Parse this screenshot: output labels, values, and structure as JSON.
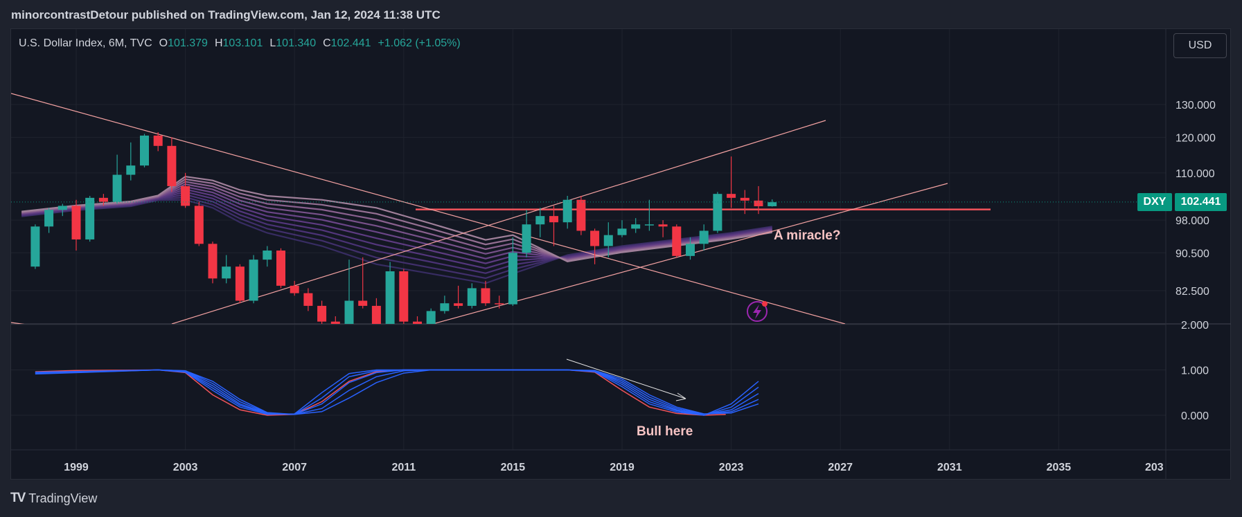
{
  "header": {
    "published": "minorcontrastDetour published on TradingView.com, Jan 12, 2024 11:38 UTC"
  },
  "legend": {
    "symbol": "U.S. Dollar Index, 6M, TVC",
    "o_label": "O",
    "o_value": "101.379",
    "h_label": "H",
    "h_value": "103.101",
    "l_label": "L",
    "l_value": "101.340",
    "c_label": "C",
    "c_value": "102.441",
    "change": "+1.062 (+1.05%)"
  },
  "currency_button": "USD",
  "price_tag": {
    "symbol": "DXY",
    "value": "102.441"
  },
  "brand": {
    "name": "TradingView"
  },
  "colors": {
    "up": "#26a69a",
    "down": "#f23645",
    "line": "#f5a3a3",
    "level": "#f2545b",
    "osc_red": "#f2545b",
    "osc_blue": "#2962ff"
  },
  "chart_data": [
    {
      "type": "candlestick",
      "title": "U.S. Dollar Index, 6M, TVC",
      "x_ticks": [
        "1999",
        "2003",
        "2007",
        "2011",
        "2015",
        "2019",
        "2023",
        "2027",
        "2031",
        "2035",
        "203"
      ],
      "y_ticks": [
        "130.000",
        "120.000",
        "110.000",
        "98.000",
        "90.500",
        "82.500"
      ],
      "y_scale": "log",
      "ylim": [
        76,
        140
      ],
      "grid": true,
      "last_price": 102.441,
      "candles": [
        {
          "t": 1997.5,
          "o": 87.5,
          "h": 97,
          "l": 87,
          "c": 96.5
        },
        {
          "t": 1998.0,
          "o": 96.5,
          "h": 101,
          "l": 95,
          "c": 100.5
        },
        {
          "t": 1998.5,
          "o": 100.5,
          "h": 102,
          "l": 99,
          "c": 101.5
        },
        {
          "t": 1999.0,
          "o": 101.5,
          "h": 103,
          "l": 91,
          "c": 93.5
        },
        {
          "t": 1999.5,
          "o": 93.5,
          "h": 104,
          "l": 93,
          "c": 103.5
        },
        {
          "t": 2000.0,
          "o": 103.5,
          "h": 104.5,
          "l": 101.5,
          "c": 102.5
        },
        {
          "t": 2000.5,
          "o": 102.5,
          "h": 115,
          "l": 102,
          "c": 109.5
        },
        {
          "t": 2001.0,
          "o": 109.5,
          "h": 118.5,
          "l": 108,
          "c": 112
        },
        {
          "t": 2001.5,
          "o": 112,
          "h": 121,
          "l": 111.5,
          "c": 120.5
        },
        {
          "t": 2002.0,
          "o": 120.5,
          "h": 121.5,
          "l": 116,
          "c": 117.5
        },
        {
          "t": 2002.5,
          "o": 117.5,
          "h": 120,
          "l": 105,
          "c": 106.5
        },
        {
          "t": 2003.0,
          "o": 106.5,
          "h": 110,
          "l": 101,
          "c": 101.5
        },
        {
          "t": 2003.5,
          "o": 101.5,
          "h": 102.5,
          "l": 92,
          "c": 92.5
        },
        {
          "t": 2004.0,
          "o": 92.5,
          "h": 93,
          "l": 84,
          "c": 85
        },
        {
          "t": 2004.5,
          "o": 85,
          "h": 90,
          "l": 84,
          "c": 87.5
        },
        {
          "t": 2005.0,
          "o": 87.5,
          "h": 88,
          "l": 80,
          "c": 80.5
        },
        {
          "t": 2005.5,
          "o": 80.5,
          "h": 90,
          "l": 80,
          "c": 89
        },
        {
          "t": 2006.0,
          "o": 89,
          "h": 92,
          "l": 87.5,
          "c": 91
        },
        {
          "t": 2006.5,
          "o": 91,
          "h": 91.5,
          "l": 83,
          "c": 83.5
        },
        {
          "t": 2007.0,
          "o": 83.5,
          "h": 84.5,
          "l": 81.5,
          "c": 82
        },
        {
          "t": 2007.5,
          "o": 82,
          "h": 83,
          "l": 78.5,
          "c": 79.5
        },
        {
          "t": 2008.0,
          "o": 79.5,
          "h": 80.5,
          "l": 76,
          "c": 76.5
        },
        {
          "t": 2008.5,
          "o": 76.5,
          "h": 77.5,
          "l": 72,
          "c": 73
        },
        {
          "t": 2009.0,
          "o": 73,
          "h": 89,
          "l": 71,
          "c": 80.5
        },
        {
          "t": 2009.5,
          "o": 80.5,
          "h": 89.5,
          "l": 79,
          "c": 79.5
        },
        {
          "t": 2010.0,
          "o": 79.5,
          "h": 81,
          "l": 75,
          "c": 76
        },
        {
          "t": 2010.5,
          "o": 76,
          "h": 88.5,
          "l": 75.5,
          "c": 86.5
        },
        {
          "t": 2011.0,
          "o": 86.5,
          "h": 87,
          "l": 75.5,
          "c": 76.5
        },
        {
          "t": 2011.5,
          "o": 76.5,
          "h": 77.5,
          "l": 72.5,
          "c": 73.5
        },
        {
          "t": 2012.0,
          "o": 73.5,
          "h": 79,
          "l": 73,
          "c": 78.5
        },
        {
          "t": 2012.5,
          "o": 78.5,
          "h": 81.5,
          "l": 78,
          "c": 80
        },
        {
          "t": 2013.0,
          "o": 80,
          "h": 83.5,
          "l": 79,
          "c": 79.5
        },
        {
          "t": 2013.5,
          "o": 79.5,
          "h": 84,
          "l": 79,
          "c": 83
        },
        {
          "t": 2014.0,
          "o": 83,
          "h": 84.5,
          "l": 79.5,
          "c": 80
        },
        {
          "t": 2014.5,
          "o": 80,
          "h": 81.5,
          "l": 79,
          "c": 79.8
        },
        {
          "t": 2015.0,
          "o": 79.8,
          "h": 94,
          "l": 79.5,
          "c": 90.5
        },
        {
          "t": 2015.5,
          "o": 90.5,
          "h": 100.5,
          "l": 89.5,
          "c": 97
        },
        {
          "t": 2016.0,
          "o": 97,
          "h": 101,
          "l": 94,
          "c": 99
        },
        {
          "t": 2016.5,
          "o": 99,
          "h": 101.5,
          "l": 92,
          "c": 97.5
        },
        {
          "t": 2017.0,
          "o": 97.5,
          "h": 104,
          "l": 96,
          "c": 103
        },
        {
          "t": 2017.5,
          "o": 103,
          "h": 104,
          "l": 94.5,
          "c": 95.5
        },
        {
          "t": 2018.0,
          "o": 95.5,
          "h": 96,
          "l": 88,
          "c": 92
        },
        {
          "t": 2018.5,
          "o": 92,
          "h": 97.5,
          "l": 89.5,
          "c": 94.5
        },
        {
          "t": 2019.0,
          "o": 94.5,
          "h": 98,
          "l": 94,
          "c": 96
        },
        {
          "t": 2019.5,
          "o": 96,
          "h": 98.5,
          "l": 95,
          "c": 97
        },
        {
          "t": 2020.0,
          "o": 97,
          "h": 103,
          "l": 95.5,
          "c": 97
        },
        {
          "t": 2020.5,
          "o": 97,
          "h": 98,
          "l": 94,
          "c": 96.5
        },
        {
          "t": 2021.0,
          "o": 96.5,
          "h": 97,
          "l": 89.5,
          "c": 89.8
        },
        {
          "t": 2021.5,
          "o": 89.8,
          "h": 94,
          "l": 89,
          "c": 92.5
        },
        {
          "t": 2022.0,
          "o": 92.5,
          "h": 97,
          "l": 91,
          "c": 95.5
        },
        {
          "t": 2022.5,
          "o": 95.5,
          "h": 105,
          "l": 95,
          "c": 104.5
        },
        {
          "t": 2023.0,
          "o": 104.5,
          "h": 114.5,
          "l": 101,
          "c": 103.5
        },
        {
          "t": 2023.5,
          "o": 103.5,
          "h": 105.5,
          "l": 99.5,
          "c": 102.8
        },
        {
          "t": 2024.0,
          "o": 102.8,
          "h": 106.5,
          "l": 99.5,
          "c": 101.4
        },
        {
          "t": 2024.5,
          "o": 101.4,
          "h": 103.1,
          "l": 101.3,
          "c": 102.4
        }
      ],
      "horizontal_level": 100.6,
      "annotations": [
        "A miracle?"
      ]
    },
    {
      "type": "line",
      "title": "",
      "y_ticks": [
        "2.000",
        "1.000",
        "0.000"
      ],
      "ylim": [
        -0.5,
        2.5
      ],
      "annotations": [
        "Bull here"
      ],
      "series": [
        {
          "color": "#f2545b",
          "values": [
            [
              1997.5,
              0.96
            ],
            [
              1999,
              0.99
            ],
            [
              2002,
              1.0
            ],
            [
              2003,
              0.94
            ],
            [
              2004,
              0.45
            ],
            [
              2005,
              0.12
            ],
            [
              2006,
              0.0
            ],
            [
              2007,
              0.02
            ],
            [
              2008,
              0.3
            ],
            [
              2009,
              0.75
            ],
            [
              2010,
              0.96
            ],
            [
              2011,
              1.0
            ],
            [
              2013,
              1.0
            ],
            [
              2015,
              1.0
            ],
            [
              2017,
              1.0
            ],
            [
              2018,
              0.95
            ],
            [
              2019,
              0.55
            ],
            [
              2020,
              0.18
            ],
            [
              2021,
              0.04
            ],
            [
              2022,
              0.0
            ],
            [
              2022.8,
              0.02
            ]
          ]
        },
        {
          "color": "#2962ff",
          "values": [
            [
              1997.5,
              0.95
            ],
            [
              2002,
              1.0
            ],
            [
              2003,
              0.95
            ],
            [
              2004,
              0.55
            ],
            [
              2005,
              0.18
            ],
            [
              2006,
              0.02
            ],
            [
              2007,
              0.03
            ],
            [
              2008,
              0.5
            ],
            [
              2009,
              0.92
            ],
            [
              2010,
              1.0
            ],
            [
              2013,
              1.0
            ],
            [
              2017,
              1.0
            ],
            [
              2018,
              0.96
            ],
            [
              2019,
              0.63
            ],
            [
              2020,
              0.25
            ],
            [
              2021,
              0.07
            ],
            [
              2022,
              0.0
            ],
            [
              2023,
              0.25
            ],
            [
              2024,
              0.75
            ]
          ]
        },
        {
          "color": "#2962ff",
          "values": [
            [
              1997.5,
              0.94
            ],
            [
              2002,
              1.0
            ],
            [
              2003,
              0.96
            ],
            [
              2004,
              0.6
            ],
            [
              2005,
              0.22
            ],
            [
              2006,
              0.03
            ],
            [
              2007,
              0.02
            ],
            [
              2008,
              0.38
            ],
            [
              2009,
              0.85
            ],
            [
              2010,
              0.98
            ],
            [
              2011,
              1.0
            ],
            [
              2017,
              1.0
            ],
            [
              2018,
              0.97
            ],
            [
              2019,
              0.68
            ],
            [
              2020,
              0.3
            ],
            [
              2021,
              0.1
            ],
            [
              2022,
              0.0
            ],
            [
              2023,
              0.18
            ],
            [
              2024,
              0.62
            ]
          ]
        },
        {
          "color": "#2962ff",
          "values": [
            [
              1997.5,
              0.93
            ],
            [
              2002,
              1.0
            ],
            [
              2003,
              0.97
            ],
            [
              2004,
              0.65
            ],
            [
              2005,
              0.25
            ],
            [
              2006,
              0.04
            ],
            [
              2007,
              0.02
            ],
            [
              2008,
              0.25
            ],
            [
              2009,
              0.72
            ],
            [
              2010,
              0.94
            ],
            [
              2011,
              1.0
            ],
            [
              2017,
              1.0
            ],
            [
              2018,
              0.98
            ],
            [
              2019,
              0.72
            ],
            [
              2020,
              0.35
            ],
            [
              2021,
              0.12
            ],
            [
              2022,
              0.01
            ],
            [
              2023,
              0.12
            ],
            [
              2024,
              0.48
            ]
          ]
        },
        {
          "color": "#2962ff",
          "values": [
            [
              1997.5,
              0.92
            ],
            [
              2002,
              1.0
            ],
            [
              2003,
              0.98
            ],
            [
              2004,
              0.7
            ],
            [
              2005,
              0.3
            ],
            [
              2006,
              0.05
            ],
            [
              2007,
              0.02
            ],
            [
              2008,
              0.15
            ],
            [
              2009,
              0.55
            ],
            [
              2010,
              0.85
            ],
            [
              2011,
              0.98
            ],
            [
              2012,
              1.0
            ],
            [
              2017,
              1.0
            ],
            [
              2018,
              0.98
            ],
            [
              2019,
              0.76
            ],
            [
              2020,
              0.4
            ],
            [
              2021,
              0.15
            ],
            [
              2022,
              0.02
            ],
            [
              2023,
              0.08
            ],
            [
              2024,
              0.35
            ]
          ]
        },
        {
          "color": "#2962ff",
          "values": [
            [
              1997.5,
              0.91
            ],
            [
              2002,
              1.0
            ],
            [
              2003,
              0.98
            ],
            [
              2004,
              0.75
            ],
            [
              2005,
              0.35
            ],
            [
              2006,
              0.06
            ],
            [
              2007,
              0.02
            ],
            [
              2008,
              0.08
            ],
            [
              2009,
              0.38
            ],
            [
              2010,
              0.72
            ],
            [
              2011,
              0.93
            ],
            [
              2012,
              1.0
            ],
            [
              2017,
              1.0
            ],
            [
              2018,
              0.99
            ],
            [
              2019,
              0.8
            ],
            [
              2020,
              0.45
            ],
            [
              2021,
              0.18
            ],
            [
              2022,
              0.03
            ],
            [
              2023,
              0.05
            ],
            [
              2024,
              0.25
            ]
          ]
        }
      ]
    }
  ]
}
